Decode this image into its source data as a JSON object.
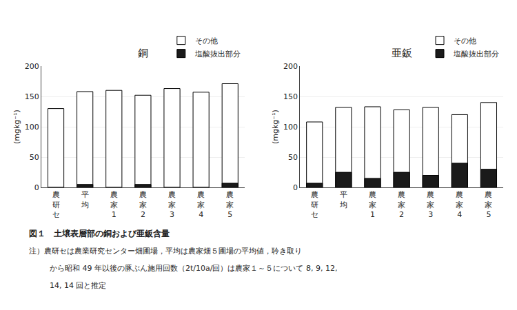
{
  "chart_data": [
    {
      "type": "bar",
      "title": "銅",
      "ylabel": "(mgkg⁻¹)",
      "categories": [
        "農\n研\nセ",
        "平\n均",
        "農\n家\n1",
        "農\n家\n2",
        "農\n家\n3",
        "農\n家\n4",
        "農\n家\n5"
      ],
      "series": [
        {
          "name": "その他",
          "color": "#ffffff",
          "values": [
            130,
            158,
            160,
            152,
            163,
            157,
            171
          ]
        },
        {
          "name": "塩酸抜出部分",
          "color": "#1a1a1a",
          "values": [
            0,
            5,
            0,
            5,
            0,
            0,
            7
          ]
        }
      ],
      "stacked": false,
      "ylim": [
        0,
        200
      ],
      "yticks": [
        0,
        50,
        100,
        150,
        200
      ],
      "grid": true,
      "legend": "upper right"
    },
    {
      "type": "bar",
      "title": "亜鈑",
      "ylabel": "(mgkg⁻¹)",
      "categories": [
        "農\n研\nセ",
        "平\n均",
        "農\n家\n1",
        "農\n家\n2",
        "農\n家\n3",
        "農\n家\n4",
        "農\n家\n5"
      ],
      "series": [
        {
          "name": "その他",
          "color": "#ffffff",
          "values": [
            108,
            132,
            133,
            128,
            132,
            120,
            140
          ]
        },
        {
          "name": "塩酸抜出部分",
          "color": "#1a1a1a",
          "values": [
            7,
            25,
            15,
            25,
            20,
            40,
            30
          ]
        }
      ],
      "stacked": false,
      "ylim": [
        0,
        200
      ],
      "yticks": [
        0,
        50,
        100,
        150,
        200
      ],
      "grid": true,
      "legend": "upper right"
    }
  ],
  "caption": "図１　土壌表層部の銅および亜鈑含量",
  "notes": [
    "注）農研セは農業研究センター畑圃場，平均は農家畑５圃場の平均値，聆き取り",
    "から昭和 49 年以後の豚ぶん施用回数（2t/10a/回）は農家１～５について 8, 9, 12,",
    "14, 14 回と推定"
  ]
}
